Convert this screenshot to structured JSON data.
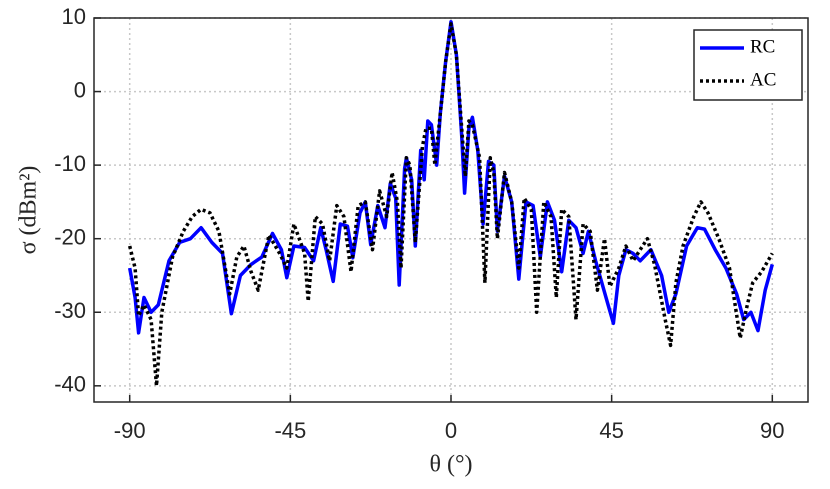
{
  "chart_data": {
    "type": "line",
    "x_label": "θ (°)",
    "y_label": "σ (dBm²)",
    "xlim": [
      -100,
      100
    ],
    "ylim": [
      -42.2,
      10
    ],
    "xticks": [
      -90,
      -45,
      0,
      45,
      90
    ],
    "yticks": [
      -40,
      -30,
      -20,
      -10,
      0,
      10
    ],
    "grid": true,
    "legend": "upper right",
    "series": [
      {
        "name": "RC",
        "color": "#0000ff",
        "style": "solid",
        "x": [
          -90,
          -88.5,
          -87.5,
          -86,
          -84,
          -82,
          -79,
          -76,
          -73,
          -70,
          -67,
          -64,
          -61.5,
          -59,
          -56,
          -53,
          -50,
          -47.5,
          -46,
          -44,
          -41,
          -38.5,
          -36.5,
          -35,
          -33,
          -31,
          -29,
          -27.5,
          -25.5,
          -24,
          -22.5,
          -20.5,
          -18.5,
          -17,
          -15.5,
          -14.5,
          -13,
          -12.5,
          -11,
          -10,
          -8.5,
          -7.5,
          -6.5,
          -5.5,
          -4,
          -3,
          -1.5,
          0,
          1.5,
          3,
          3.8,
          5,
          6,
          7.5,
          9,
          10.5,
          12,
          13,
          15,
          17,
          19,
          21,
          23,
          25,
          27,
          29,
          31,
          33,
          35,
          37,
          38.5,
          40.5,
          44,
          45.5,
          47,
          49,
          51,
          53,
          56,
          59,
          61,
          63,
          66,
          69,
          71,
          74,
          77,
          80,
          82,
          84,
          86,
          88,
          90
        ],
        "values": [
          -24,
          -28,
          -32.8,
          -28,
          -30,
          -29,
          -23,
          -20.5,
          -20,
          -18.5,
          -20.5,
          -22,
          -30.2,
          -25,
          -23.5,
          -22.5,
          -19.3,
          -21.5,
          -25.3,
          -21,
          -21.2,
          -23,
          -18.5,
          -21.5,
          -25.8,
          -18,
          -18.3,
          -22.6,
          -16.5,
          -15,
          -20.8,
          -15.5,
          -18.5,
          -12.5,
          -14.5,
          -26.3,
          -10.5,
          -9,
          -12,
          -21,
          -8,
          -12,
          -4,
          -4.5,
          -10,
          -3,
          4,
          9.5,
          5,
          -6,
          -13.8,
          -5,
          -3.5,
          -8,
          -18,
          -9.5,
          -10,
          -19,
          -11.5,
          -15,
          -25.5,
          -15,
          -15.5,
          -22.5,
          -15,
          -17.5,
          -24.5,
          -17.5,
          -18.5,
          -22,
          -19,
          -23,
          -29,
          -31.5,
          -25,
          -21.5,
          -22,
          -23,
          -21.5,
          -25,
          -30,
          -27.5,
          -21,
          -18.5,
          -18.7,
          -21.5,
          -24,
          -27.5,
          -31,
          -30,
          -32.5,
          -27,
          -23.5
        ]
      },
      {
        "name": "AC",
        "color": "#000000",
        "style": "dotted",
        "x": [
          -90,
          -88.5,
          -87.5,
          -86,
          -84,
          -82.5,
          -81,
          -78,
          -75,
          -72.5,
          -70,
          -67.5,
          -65,
          -62,
          -60,
          -58,
          -56,
          -54,
          -51,
          -48,
          -46,
          -44,
          -41,
          -40,
          -38,
          -36,
          -34,
          -32,
          -30,
          -28,
          -26,
          -24,
          -22,
          -20,
          -18,
          -16.5,
          -15,
          -14,
          -12.5,
          -11.5,
          -10,
          -8,
          -7,
          -5.5,
          -4.5,
          -3,
          -1.5,
          0,
          1.5,
          3,
          4,
          5,
          6,
          8,
          9.5,
          11,
          12,
          13,
          15,
          17,
          19,
          20.5,
          22.5,
          24,
          26,
          28,
          29.5,
          31,
          33,
          35,
          37,
          39,
          41,
          43,
          44.5,
          47,
          49,
          51,
          53,
          55,
          57,
          60,
          61.5,
          63,
          65,
          68,
          70,
          72,
          75,
          78,
          81,
          83,
          84.5,
          87,
          90
        ],
        "values": [
          -21,
          -24,
          -30.5,
          -29,
          -31,
          -40,
          -30,
          -22.5,
          -19,
          -17,
          -16,
          -16.5,
          -19,
          -27.5,
          -22.5,
          -21,
          -24.5,
          -27,
          -19.5,
          -22,
          -24,
          -18,
          -22,
          -28.5,
          -17,
          -18,
          -23,
          -15.5,
          -17,
          -24.5,
          -15.5,
          -15,
          -21.5,
          -13.5,
          -17,
          -11,
          -15,
          -24,
          -9,
          -10,
          -20.5,
          -7.5,
          -5,
          -5,
          -10,
          -3,
          4,
          9.2,
          5,
          -5,
          -11.5,
          -4,
          -4.5,
          -9,
          -26,
          -9,
          -11,
          -20,
          -11,
          -15,
          -24,
          -14.5,
          -16,
          -30,
          -15,
          -17,
          -28,
          -16,
          -17,
          -31,
          -18,
          -19,
          -27,
          -20,
          -26.5,
          -24,
          -21,
          -23,
          -21.5,
          -20,
          -23.5,
          -31,
          -34.5,
          -26,
          -21,
          -17,
          -15,
          -16.5,
          -20,
          -24,
          -33.5,
          -29,
          -26,
          -24.5,
          -22
        ]
      }
    ]
  }
}
